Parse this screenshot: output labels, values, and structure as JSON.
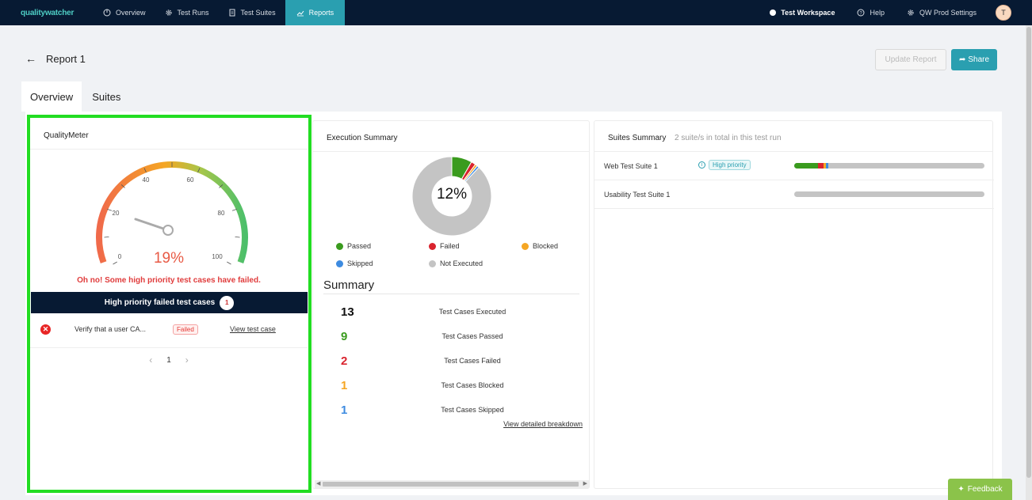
{
  "app": {
    "logo_text": "qualitywatcher"
  },
  "nav": {
    "items": [
      {
        "label": "Overview",
        "icon": "dashboard-icon"
      },
      {
        "label": "Test Runs",
        "icon": "gear-icon"
      },
      {
        "label": "Test Suites",
        "icon": "document-icon"
      },
      {
        "label": "Reports",
        "icon": "chart-icon",
        "active": true
      }
    ],
    "workspace": "Test Workspace",
    "help": "Help",
    "settings": "QW Prod Settings",
    "avatar_initial": "T"
  },
  "page": {
    "title": "Report 1",
    "update_button": "Update Report",
    "share_button": "Share",
    "tabs": [
      {
        "label": "Overview",
        "active": true
      },
      {
        "label": "Suites"
      }
    ]
  },
  "quality_meter": {
    "title": "QualityMeter",
    "gauge_ticks": [
      "0",
      "20",
      "40",
      "60",
      "80",
      "100"
    ],
    "value_percent": 19,
    "value_label": "19%",
    "warning": "Oh no! Some high priority test cases have failed.",
    "hp_header": "High priority failed test cases",
    "hp_count": "1",
    "failed_case": {
      "name": "Verify that a user CA...",
      "status": "Failed",
      "link": "View test case"
    },
    "page_number": "1"
  },
  "execution_summary": {
    "title": "Execution Summary",
    "donut_label": "12%",
    "legend": [
      {
        "label": "Passed",
        "color": "#3a9b1e"
      },
      {
        "label": "Failed",
        "color": "#d9232e"
      },
      {
        "label": "Blocked",
        "color": "#f5a623"
      },
      {
        "label": "Skipped",
        "color": "#3d8be0"
      },
      {
        "label": "Not Executed",
        "color": "#c4c4c4"
      }
    ],
    "summary_title": "Summary",
    "rows": [
      {
        "value": "13",
        "label": "Test Cases Executed",
        "color": "#111111"
      },
      {
        "value": "9",
        "label": "Test Cases Passed",
        "color": "#3a9b1e"
      },
      {
        "value": "2",
        "label": "Test Cases Failed",
        "color": "#d9232e"
      },
      {
        "value": "1",
        "label": "Test Cases Blocked",
        "color": "#f5a623"
      },
      {
        "value": "1",
        "label": "Test Cases Skipped",
        "color": "#3d8be0"
      }
    ],
    "detail_link": "View detailed breakdown"
  },
  "suites_summary": {
    "title": "Suites Summary",
    "subtitle": "2 suite/s in total in this test run",
    "suites": [
      {
        "name": "Web Test Suite 1",
        "tag": "High priority",
        "passed": 0.125,
        "failed": 0.03,
        "blocked": 0.012,
        "skipped": 0.012
      },
      {
        "name": "Usability Test Suite 1",
        "tag": "",
        "passed": 0,
        "failed": 0,
        "blocked": 0,
        "skipped": 0
      }
    ]
  },
  "feedback_button": "Feedback"
}
